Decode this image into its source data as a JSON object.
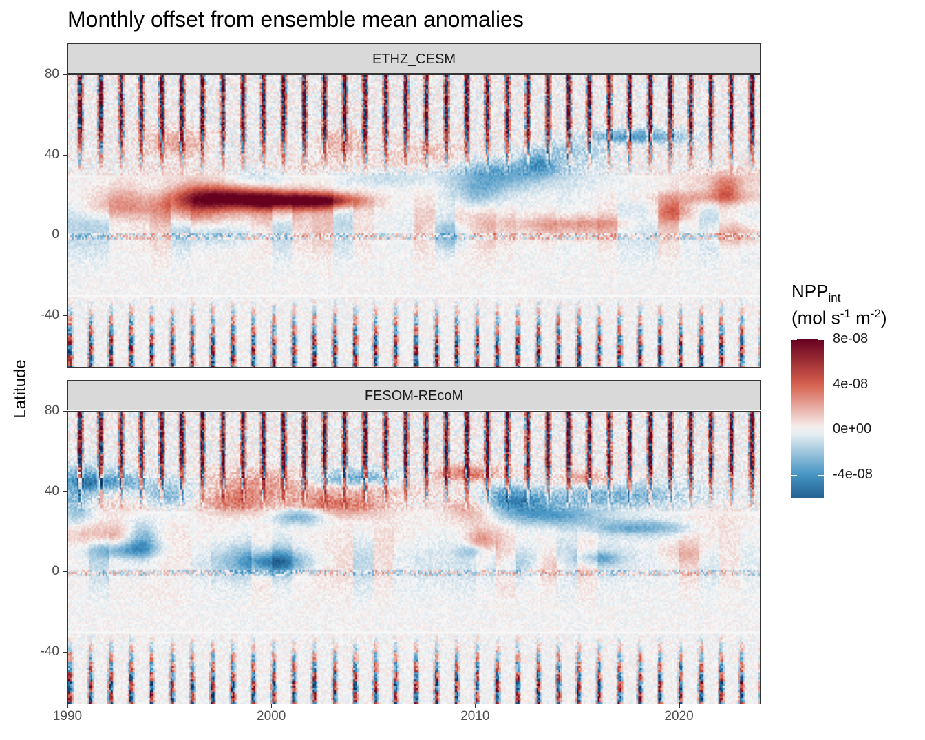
{
  "title": "Monthly offset from ensemble mean anomalies",
  "y_axis_label": "Latitude",
  "legend": {
    "title_main": "NPP",
    "title_sub": "int",
    "units_prefix": "(mol s",
    "units_exp1": "-1",
    "units_mid": " m",
    "units_exp2": "-2",
    "units_suffix": ")",
    "tick_labels": [
      "8e-08",
      "4e-08",
      "0e+00",
      "-4e-08"
    ],
    "colors": {
      "high": "#67001f",
      "mid_high": "#d6604d",
      "mid": "#f7f7f7",
      "mid_low": "#4393c3",
      "low": "#053061"
    }
  },
  "chart_data": {
    "type": "heatmap",
    "title": "Monthly offset from ensemble mean anomalies",
    "ylabel": "Latitude",
    "xlabel": "",
    "xlim": [
      1990,
      2024
    ],
    "ylim": [
      -66,
      80
    ],
    "x_ticks": [
      1990,
      2000,
      2010,
      2020
    ],
    "y_ticks": [
      80,
      40,
      0,
      -40
    ],
    "fill_range": [
      -6e-08,
      8e-08
    ],
    "fill_breaks": [
      8e-08,
      4e-08,
      0,
      -4e-08
    ],
    "panels": [
      {
        "name": "ETHZ_CESM"
      },
      {
        "name": "FESOM-REcoM"
      }
    ]
  }
}
